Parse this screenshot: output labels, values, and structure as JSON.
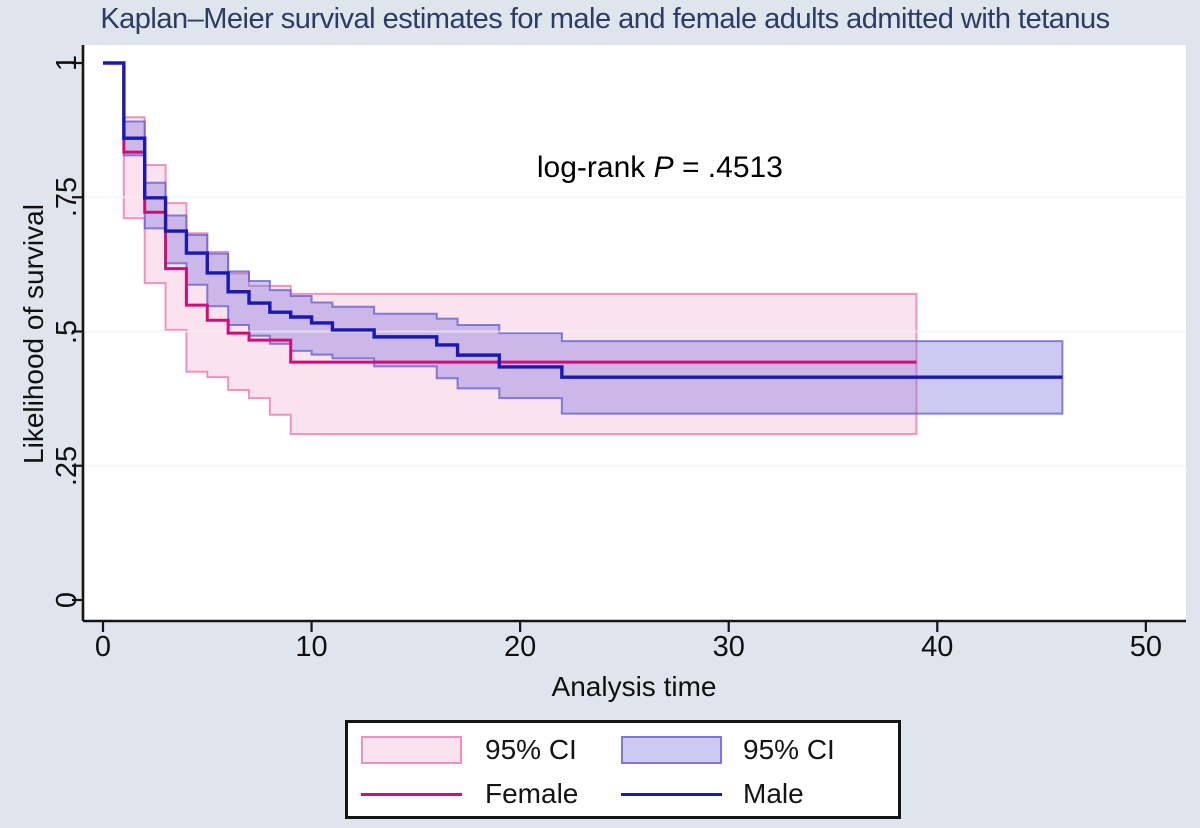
{
  "colors": {
    "background": "#dee5ec",
    "plot_background": "#ffffff",
    "axis": "#151515",
    "grid": "#e8edf3",
    "grid_overlay": "rgba(255,255,255,0.55)",
    "title_text": "#2e3b63",
    "female_line": "#cf0e78",
    "male_line": "#1b18b3",
    "female_band_fill": "rgba(244,178,213,0.38)",
    "female_band_stroke": "rgba(236,130,180,0.85)",
    "male_band_fill": "rgba(136,126,222,0.42)",
    "male_band_stroke": "rgba(98,92,205,0.75)"
  },
  "chart_data": {
    "type": "line",
    "subtype": "kaplan-meier-step",
    "title": "Kaplan–Meier survival estimates for male and female adults admitted with tetanus",
    "xlabel": "Analysis time",
    "ylabel": "Likelihood of survival",
    "xlim": [
      -0.96,
      51.9
    ],
    "ylim": [
      -0.039,
      1.034
    ],
    "x_ticks": [
      0,
      10,
      20,
      30,
      40,
      50
    ],
    "x_tick_labels": [
      "0",
      "10",
      "20",
      "30",
      "40",
      "50"
    ],
    "y_ticks": [
      0,
      0.25,
      0.5,
      0.75,
      1
    ],
    "y_tick_labels": [
      "0",
      ".25",
      ".5",
      ".75",
      "1"
    ],
    "grid_y": [
      0.25,
      0.5,
      0.75
    ],
    "grid": "horizontal-only",
    "annotation": {
      "text_prefix": "log-rank ",
      "text_italic": "P",
      "text_suffix": " = .4513",
      "x": 26.7,
      "y": 0.805
    },
    "series": [
      {
        "name": "Female",
        "color_key": "female_line",
        "width": 3,
        "end_t": 39,
        "points": [
          [
            0,
            1
          ],
          [
            1,
            0.834
          ],
          [
            2,
            0.722
          ],
          [
            3,
            0.617
          ],
          [
            4,
            0.549
          ],
          [
            5,
            0.521
          ],
          [
            6,
            0.497
          ],
          [
            7,
            0.484
          ],
          [
            9,
            0.443
          ]
        ]
      },
      {
        "name": "Male",
        "color_key": "male_line",
        "width": 3.4,
        "end_t": 46,
        "points": [
          [
            0,
            1
          ],
          [
            1,
            0.86
          ],
          [
            2,
            0.749
          ],
          [
            3,
            0.687
          ],
          [
            4,
            0.646
          ],
          [
            5,
            0.609
          ],
          [
            6,
            0.574
          ],
          [
            7,
            0.553
          ],
          [
            8,
            0.536
          ],
          [
            9,
            0.527
          ],
          [
            10,
            0.516
          ],
          [
            11,
            0.503
          ],
          [
            13,
            0.49
          ],
          [
            16,
            0.475
          ],
          [
            17,
            0.456
          ],
          [
            19,
            0.434
          ],
          [
            22,
            0.415
          ]
        ]
      }
    ],
    "bands": [
      {
        "name": "95% CI",
        "series": "Female",
        "fill_key": "female_band_fill",
        "stroke_key": "female_band_stroke",
        "end_t": 39,
        "upper": [
          [
            1,
            0.899
          ],
          [
            2,
            0.81
          ],
          [
            3,
            0.739
          ],
          [
            4,
            0.683
          ],
          [
            5,
            0.648
          ],
          [
            6,
            0.608
          ],
          [
            7,
            0.585
          ],
          [
            9,
            0.57
          ]
        ],
        "lower": [
          [
            1,
            0.711
          ],
          [
            2,
            0.59
          ],
          [
            3,
            0.503
          ],
          [
            4,
            0.425
          ],
          [
            5,
            0.415
          ],
          [
            6,
            0.391
          ],
          [
            7,
            0.376
          ],
          [
            8,
            0.345
          ],
          [
            9,
            0.309
          ]
        ]
      },
      {
        "name": "95% CI",
        "series": "Male",
        "fill_key": "male_band_fill",
        "stroke_key": "male_band_stroke",
        "end_t": 46,
        "upper": [
          [
            1,
            0.891
          ],
          [
            2,
            0.777
          ],
          [
            3,
            0.716
          ],
          [
            4,
            0.68
          ],
          [
            5,
            0.645
          ],
          [
            6,
            0.612
          ],
          [
            7,
            0.594
          ],
          [
            8,
            0.577
          ],
          [
            9,
            0.566
          ],
          [
            10,
            0.554
          ],
          [
            11,
            0.546
          ],
          [
            13,
            0.533
          ],
          [
            16,
            0.524
          ],
          [
            17,
            0.512
          ],
          [
            19,
            0.497
          ],
          [
            22,
            0.482
          ]
        ],
        "lower": [
          [
            1,
            0.828
          ],
          [
            2,
            0.692
          ],
          [
            3,
            0.627
          ],
          [
            4,
            0.587
          ],
          [
            5,
            0.547
          ],
          [
            6,
            0.512
          ],
          [
            7,
            0.492
          ],
          [
            8,
            0.477
          ],
          [
            9,
            0.464
          ],
          [
            10,
            0.457
          ],
          [
            11,
            0.45
          ],
          [
            13,
            0.435
          ],
          [
            16,
            0.413
          ],
          [
            17,
            0.394
          ],
          [
            19,
            0.376
          ],
          [
            22,
            0.347
          ]
        ]
      }
    ],
    "legend": {
      "position": "bottom",
      "items": [
        {
          "label": "95% CI",
          "swatch": "band",
          "series": "Female"
        },
        {
          "label": "95% CI",
          "swatch": "band",
          "series": "Male"
        },
        {
          "label": "Female",
          "swatch": "line",
          "series": "Female"
        },
        {
          "label": "Male",
          "swatch": "line",
          "series": "Male"
        }
      ]
    }
  }
}
